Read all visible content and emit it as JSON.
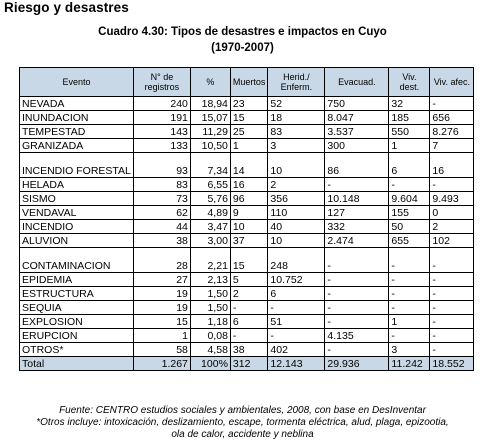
{
  "section_heading": "Riesgo y desastres",
  "table_title_line1": "Cuadro 4.30: Tipos de desastres e impactos en Cuyo",
  "table_title_line2": "(1970-2007)",
  "headers": [
    "Evento",
    "N° de registros",
    "%",
    "Muertos",
    "Herid./ Enferm.",
    "Evacuad.",
    "Viv. dest.",
    "Viv. afec."
  ],
  "rows": [
    {
      "event": "NEVADA",
      "registros": "240",
      "pct": "18,94",
      "muertos": "23",
      "heridos": "52",
      "evacuados": "750",
      "viv_dest": "32",
      "viv_afec": "-"
    },
    {
      "event": "INUNDACION",
      "registros": "191",
      "pct": "15,07",
      "muertos": "15",
      "heridos": "18",
      "evacuados": "8.047",
      "viv_dest": "185",
      "viv_afec": "656"
    },
    {
      "event": "TEMPESTAD",
      "registros": "143",
      "pct": "11,29",
      "muertos": "25",
      "heridos": "83",
      "evacuados": "3.537",
      "viv_dest": "550",
      "viv_afec": "8.276"
    },
    {
      "event": "GRANIZADA",
      "registros": "133",
      "pct": "10,50",
      "muertos": "1",
      "heridos": "3",
      "evacuados": "300",
      "viv_dest": "1",
      "viv_afec": "7"
    },
    {
      "event": "INCENDIO FORESTAL",
      "registros": "93",
      "pct": "7,34",
      "muertos": "14",
      "heridos": "10",
      "evacuados": "86",
      "viv_dest": "6",
      "viv_afec": "16"
    },
    {
      "event": "HELADA",
      "registros": "83",
      "pct": "6,55",
      "muertos": "16",
      "heridos": "2",
      "evacuados": "-",
      "viv_dest": "-",
      "viv_afec": "-"
    },
    {
      "event": "SISMO",
      "registros": "73",
      "pct": "5,76",
      "muertos": "96",
      "heridos": "356",
      "evacuados": "10.148",
      "viv_dest": "9.604",
      "viv_afec": "9.493"
    },
    {
      "event": "VENDAVAL",
      "registros": "62",
      "pct": "4,89",
      "muertos": "9",
      "heridos": "110",
      "evacuados": "127",
      "viv_dest": "155",
      "viv_afec": "0"
    },
    {
      "event": "INCENDIO",
      "registros": "44",
      "pct": "3,47",
      "muertos": "10",
      "heridos": "40",
      "evacuados": "332",
      "viv_dest": "50",
      "viv_afec": "2"
    },
    {
      "event": "ALUVION",
      "registros": "38",
      "pct": "3,00",
      "muertos": "37",
      "heridos": "10",
      "evacuados": "2.474",
      "viv_dest": "655",
      "viv_afec": "102"
    },
    {
      "event": "CONTAMINACION",
      "registros": "28",
      "pct": "2,21",
      "muertos": "15",
      "heridos": "248",
      "evacuados": "-",
      "viv_dest": "-",
      "viv_afec": "-"
    },
    {
      "event": "EPIDEMIA",
      "registros": "27",
      "pct": "2,13",
      "muertos": "5",
      "heridos": "10.752",
      "evacuados": "-",
      "viv_dest": "-",
      "viv_afec": "-"
    },
    {
      "event": "ESTRUCTURA",
      "registros": "19",
      "pct": "1,50",
      "muertos": "2",
      "heridos": "6",
      "evacuados": "-",
      "viv_dest": "-",
      "viv_afec": "-"
    },
    {
      "event": "SEQUIA",
      "registros": "19",
      "pct": "1,50",
      "muertos": "-",
      "heridos": "-",
      "evacuados": "-",
      "viv_dest": "-",
      "viv_afec": "-"
    },
    {
      "event": "EXPLOSION",
      "registros": "15",
      "pct": "1,18",
      "muertos": "6",
      "heridos": "51",
      "evacuados": "-",
      "viv_dest": "1",
      "viv_afec": "-"
    },
    {
      "event": "ERUPCION",
      "registros": "1",
      "pct": "0,08",
      "muertos": "-",
      "heridos": "-",
      "evacuados": "4.135",
      "viv_dest": "-",
      "viv_afec": "-"
    },
    {
      "event": "OTROS*",
      "registros": "58",
      "pct": "4,58",
      "muertos": "38",
      "heridos": "402",
      "evacuados": "-",
      "viv_dest": "3",
      "viv_afec": "-"
    }
  ],
  "total": {
    "event": "Total",
    "registros": "1.267",
    "pct": "100%",
    "muertos": "312",
    "heridos": "12.143",
    "evacuados": "29.936",
    "viv_dest": "11.242",
    "viv_afec": "18.552"
  },
  "footnote_source": "Fuente: CENTRO estudios sociales y ambientales, 2008, con base en DesInventar",
  "footnote_others_line1": "*Otros incluye: intoxicación, deslizamiento, escape, tormenta eléctrica, alud, plaga, epizootia,",
  "footnote_others_line2": "ola de calor, accidente y neblina"
}
